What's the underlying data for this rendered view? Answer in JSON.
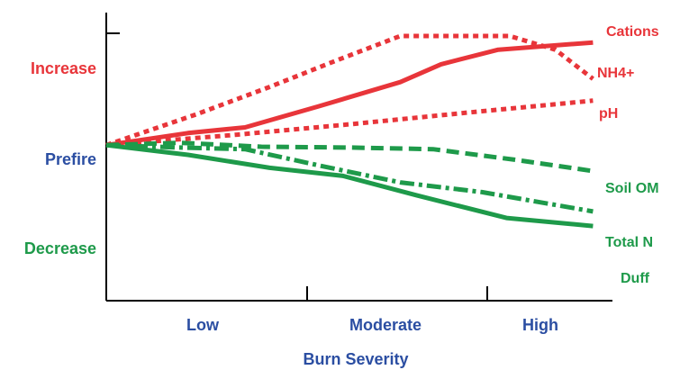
{
  "chart_data": {
    "type": "line",
    "title": "",
    "xlabel": "Burn Severity",
    "ylabel": "",
    "x_ticks": [
      "Low",
      "Moderate",
      "High"
    ],
    "y_ticks": [
      {
        "label": "Increase",
        "value": 1,
        "color": "#e8353a"
      },
      {
        "label": "Prefire",
        "value": 0,
        "color": "#2b4ea2"
      },
      {
        "label": "Decrease",
        "value": -1,
        "color": "#1e9a4a"
      }
    ],
    "xlim": [
      0,
      3
    ],
    "ylim": [
      -1.5,
      1.55
    ],
    "grid": false,
    "legend": "end-of-line labels",
    "series": [
      {
        "name": "Cations",
        "color": "#e8353a",
        "style": "solid",
        "x": [
          0,
          0.5,
          0.85,
          1.3,
          1.8,
          2.05,
          2.4,
          2.98
        ],
        "y": [
          0,
          0.15,
          0.22,
          0.48,
          0.78,
          1.0,
          1.18,
          1.27
        ]
      },
      {
        "name": "NH4+",
        "color": "#e8353a",
        "style": "dotted",
        "x": [
          0,
          0.55,
          1.0,
          1.4,
          1.8,
          2.05,
          2.3,
          2.47,
          2.75,
          2.98
        ],
        "y": [
          0,
          0.38,
          0.72,
          1.04,
          1.35,
          1.35,
          1.35,
          1.35,
          1.18,
          0.82
        ]
      },
      {
        "name": "pH",
        "color": "#e8353a",
        "style": "dotted",
        "x": [
          0,
          0.8,
          1.5,
          2.2,
          2.98
        ],
        "y": [
          0,
          0.13,
          0.26,
          0.4,
          0.55
        ]
      },
      {
        "name": "Soil OM",
        "color": "#1e9a4a",
        "style": "dashed",
        "x": [
          0,
          0.45,
          0.95,
          1.5,
          2.0,
          2.5,
          2.98
        ],
        "y": [
          0,
          0.03,
          -0.02,
          -0.03,
          -0.05,
          -0.18,
          -0.32
        ]
      },
      {
        "name": "Total N",
        "color": "#1e9a4a",
        "style": "dashdot",
        "x": [
          0,
          0.45,
          0.85,
          1.3,
          1.8,
          2.3,
          2.98
        ],
        "y": [
          0,
          -0.03,
          -0.05,
          -0.25,
          -0.46,
          -0.58,
          -0.82
        ]
      },
      {
        "name": "Duff",
        "color": "#1e9a4a",
        "style": "solid",
        "x": [
          0,
          0.5,
          1.0,
          1.45,
          1.9,
          2.45,
          2.98
        ],
        "y": [
          0,
          -0.12,
          -0.28,
          -0.38,
          -0.62,
          -0.9,
          -1.0
        ]
      }
    ]
  }
}
